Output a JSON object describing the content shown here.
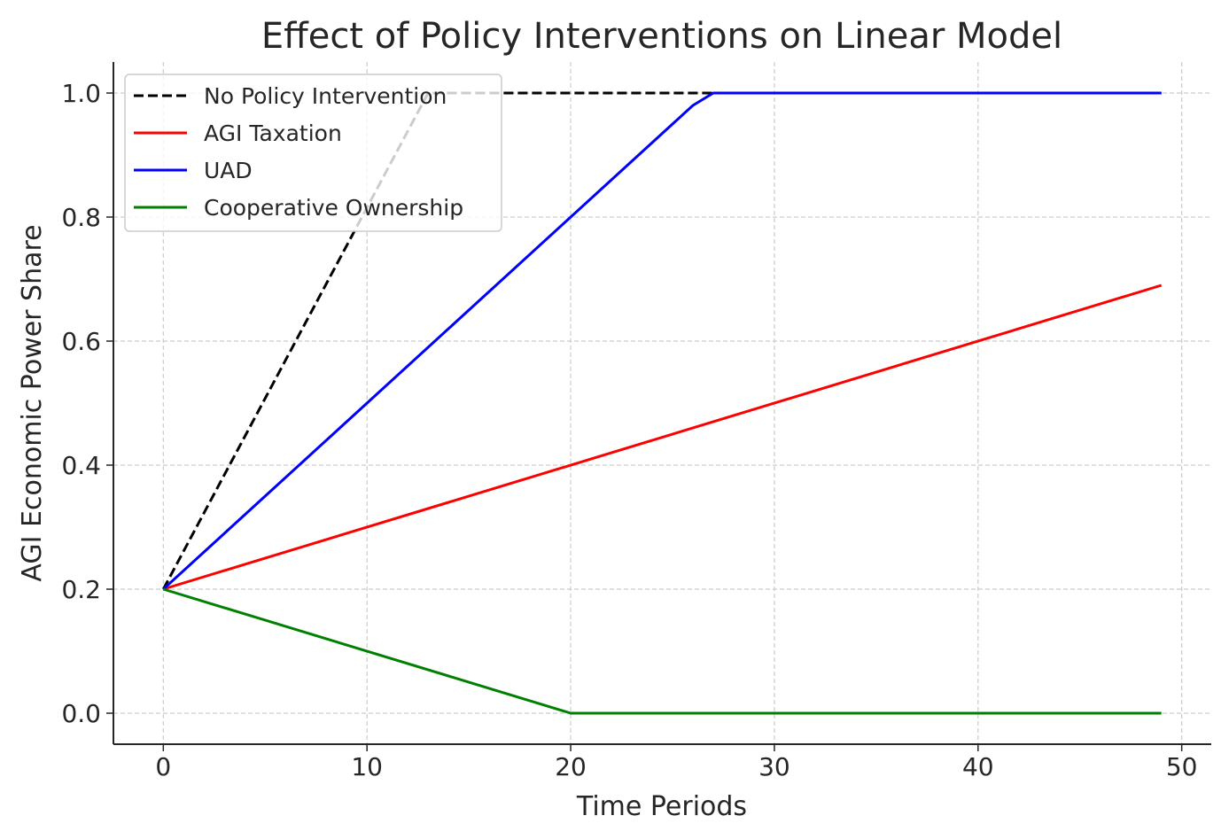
{
  "chart_data": {
    "type": "line",
    "title": "Effect of Policy Interventions on Linear Model",
    "xlabel": "Time Periods",
    "ylabel": "AGI Economic Power Share",
    "xlim": [
      -2.45,
      51.45
    ],
    "ylim": [
      -0.05,
      1.05
    ],
    "xticks": [
      0,
      10,
      20,
      30,
      40,
      50
    ],
    "xtick_labels": [
      "0",
      "10",
      "20",
      "30",
      "40",
      "50"
    ],
    "yticks": [
      0.0,
      0.2,
      0.4,
      0.6,
      0.8,
      1.0
    ],
    "ytick_labels": [
      "0.0",
      "0.2",
      "0.4",
      "0.6",
      "0.8",
      "1.0"
    ],
    "grid": true,
    "legend_position": "top-left",
    "series": [
      {
        "name": "No Policy Intervention",
        "color": "#000000",
        "style": "dashed",
        "x": [
          0,
          13,
          49
        ],
        "y": [
          0.2,
          1.0,
          1.0
        ]
      },
      {
        "name": "AGI Taxation",
        "color": "#ff0000",
        "style": "solid",
        "x": [
          0,
          49
        ],
        "y": [
          0.2,
          0.69
        ]
      },
      {
        "name": "UAD",
        "color": "#0000ff",
        "style": "solid",
        "x": [
          0,
          26,
          27,
          49
        ],
        "y": [
          0.2,
          0.98,
          1.0,
          1.0
        ]
      },
      {
        "name": "Cooperative Ownership",
        "color": "#008000",
        "style": "solid",
        "x": [
          0,
          20,
          49
        ],
        "y": [
          0.2,
          0.0,
          0.0
        ]
      }
    ]
  }
}
